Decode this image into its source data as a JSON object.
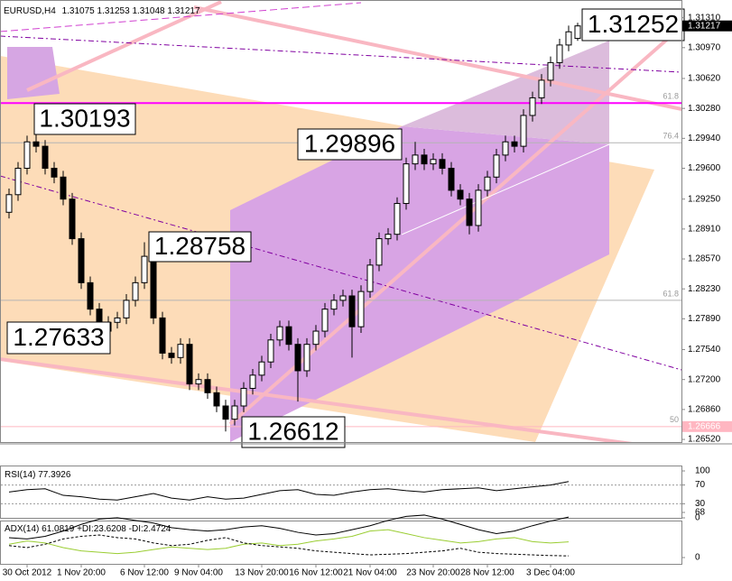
{
  "chart_data": [
    {
      "type": "candlestick",
      "title": "EURUSD,H4",
      "categories": [
        null,
        null,
        "30 Oct 2012",
        null,
        null,
        null,
        null,
        null,
        "1 Nov 20:00",
        null,
        null,
        null,
        null,
        null,
        null,
        "6 Nov 12:00",
        null,
        null,
        null,
        null,
        null,
        "9 Nov 04:00",
        null,
        null,
        null,
        null,
        null,
        null,
        "13 Nov 20:00",
        null,
        null,
        null,
        null,
        null,
        "16 Nov 12:00",
        null,
        null,
        null,
        null,
        null,
        "21 Nov 04:00",
        null,
        null,
        null,
        null,
        null,
        null,
        "23 Nov 20:00",
        null,
        null,
        null,
        null,
        null,
        "28 Nov 12:00",
        null,
        null,
        null,
        null,
        null,
        null,
        "3 Dec 04:00",
        null,
        null,
        null
      ],
      "open": [
        1.291,
        1.293,
        1.296,
        1.299,
        1.2985,
        1.296,
        1.295,
        1.2925,
        1.288,
        1.283,
        1.28,
        1.2775,
        1.2785,
        1.279,
        1.281,
        1.283,
        1.286,
        1.279,
        1.275,
        1.2745,
        1.276,
        1.2715,
        1.272,
        1.2705,
        1.269,
        1.2675,
        1.269,
        1.271,
        1.2725,
        1.274,
        1.2765,
        1.278,
        1.276,
        1.273,
        1.276,
        1.2775,
        1.28,
        1.281,
        1.2815,
        1.278,
        1.282,
        1.285,
        1.288,
        1.2885,
        1.292,
        1.2965,
        1.2975,
        1.2965,
        1.297,
        1.296,
        1.2935,
        1.2925,
        1.2895,
        1.2935,
        1.295,
        1.2975,
        1.299,
        1.2985,
        1.302,
        1.304,
        1.306,
        1.308,
        1.31,
        1.31075
      ],
      "high": [
        1.2937,
        1.2967,
        1.2997,
        1.3019,
        1.2992,
        1.2967,
        1.2957,
        1.2932,
        1.2887,
        1.2837,
        1.2807,
        1.2792,
        1.2797,
        1.2817,
        1.2837,
        1.2876,
        1.2867,
        1.2797,
        1.2757,
        1.2767,
        1.2767,
        1.2727,
        1.2727,
        1.2712,
        1.2697,
        1.2697,
        1.2717,
        1.2732,
        1.2747,
        1.2772,
        1.2787,
        1.2787,
        1.2767,
        1.2767,
        1.2782,
        1.2807,
        1.2817,
        1.2822,
        1.2822,
        1.2827,
        1.2857,
        1.2887,
        1.2892,
        1.2927,
        1.2972,
        1.299,
        1.2982,
        1.2977,
        1.2977,
        1.2967,
        1.2942,
        1.2932,
        1.2942,
        1.2957,
        1.2982,
        1.2997,
        1.2997,
        1.3027,
        1.3047,
        1.3067,
        1.3087,
        1.3107,
        1.3122,
        1.31253
      ],
      "low": [
        1.2903,
        1.2923,
        1.2953,
        1.2978,
        1.2953,
        1.2943,
        1.2918,
        1.2873,
        1.2823,
        1.2793,
        1.2763,
        1.2768,
        1.2778,
        1.2783,
        1.2803,
        1.2823,
        1.2783,
        1.2743,
        1.2738,
        1.2738,
        1.2708,
        1.2708,
        1.2698,
        1.2683,
        1.2661,
        1.2668,
        1.2683,
        1.2703,
        1.2718,
        1.2733,
        1.2758,
        1.2753,
        1.2695,
        1.2723,
        1.2753,
        1.2768,
        1.2793,
        1.2803,
        1.2745,
        1.2773,
        1.2813,
        1.2843,
        1.2873,
        1.2878,
        1.2913,
        1.2958,
        1.2958,
        1.2958,
        1.2953,
        1.2928,
        1.2918,
        1.2885,
        1.2888,
        1.2928,
        1.2943,
        1.2968,
        1.2978,
        1.2978,
        1.3013,
        1.3033,
        1.3053,
        1.3073,
        1.3093,
        1.31048
      ],
      "close": [
        1.293,
        1.296,
        1.299,
        1.2985,
        1.296,
        1.295,
        1.2925,
        1.288,
        1.283,
        1.28,
        1.2775,
        1.2785,
        1.279,
        1.281,
        1.283,
        1.286,
        1.279,
        1.275,
        1.2745,
        1.276,
        1.2715,
        1.272,
        1.2705,
        1.269,
        1.2675,
        1.269,
        1.271,
        1.2725,
        1.274,
        1.2765,
        1.278,
        1.276,
        1.273,
        1.276,
        1.2775,
        1.28,
        1.281,
        1.2815,
        1.278,
        1.282,
        1.285,
        1.288,
        1.2885,
        1.292,
        1.2965,
        1.2975,
        1.2965,
        1.297,
        1.296,
        1.2935,
        1.2925,
        1.2895,
        1.2935,
        1.295,
        1.2975,
        1.299,
        1.2985,
        1.302,
        1.304,
        1.306,
        1.308,
        1.31,
        1.3115,
        1.31217
      ],
      "ylim": [
        1.2649,
        1.3146
      ],
      "yticks": [
        {
          "value": 1.3131,
          "label": "1.31310"
        },
        {
          "value": 1.3097,
          "label": "1.30970"
        },
        {
          "value": 1.3062,
          "label": "1.30620"
        },
        {
          "value": 1.3028,
          "label": "1.30280"
        },
        {
          "value": 1.2994,
          "label": "1.29940"
        },
        {
          "value": 1.296,
          "label": "1.29600"
        },
        {
          "value": 1.2925,
          "label": "1.29250"
        },
        {
          "value": 1.2891,
          "label": "1.28910"
        },
        {
          "value": 1.2857,
          "label": "1.28570"
        },
        {
          "value": 1.2823,
          "label": "1.28230"
        },
        {
          "value": 1.2789,
          "label": "1.27890"
        },
        {
          "value": 1.2754,
          "label": "1.27540"
        },
        {
          "value": 1.272,
          "label": "1.27200"
        },
        {
          "value": 1.2686,
          "label": "1.26860"
        },
        {
          "value": 1.2652,
          "label": "1.26520"
        }
      ],
      "levels": [
        {
          "label": "61.8",
          "value": 1.3034,
          "color": "#ff00ff"
        },
        {
          "label": "76.4",
          "value": 1.2989,
          "color": "#b4b4b4"
        },
        {
          "label": "61.8",
          "value": 1.281,
          "color": "#b4b4b4"
        },
        {
          "label": "50",
          "value": 1.26666,
          "color": "#ffb6c1"
        }
      ],
      "annotations": [
        "1.31252",
        "1.30193",
        "1.29896",
        "1.28758",
        "1.27633",
        "1.26612"
      ]
    },
    {
      "type": "line",
      "title": "RSI(14)",
      "values": [
        55,
        60,
        62,
        48,
        45,
        40,
        38,
        45,
        52,
        42,
        38,
        45,
        40,
        42,
        50,
        58,
        60,
        50,
        48,
        55,
        60,
        62,
        58,
        55,
        60,
        62,
        64,
        58,
        62,
        66,
        70,
        77.3926
      ],
      "color": "#000000",
      "ylim": [
        0,
        100
      ],
      "yticks": [
        100,
        70,
        30,
        0
      ]
    },
    {
      "type": "line",
      "title": "ADX(14)",
      "series": [
        {
          "name": "ADX(14)",
          "color": "#000000",
          "values": [
            30,
            28,
            32,
            40,
            50,
            58,
            60,
            56,
            52,
            45,
            42,
            40,
            42,
            46,
            48,
            44,
            38,
            34,
            36,
            42,
            48,
            56,
            62,
            64,
            58,
            50,
            42,
            36,
            40,
            48,
            55,
            61.0819
          ]
        },
        {
          "name": "+DI:",
          "color": "#9acd32",
          "values": [
            20,
            25,
            22,
            15,
            10,
            8,
            6,
            8,
            12,
            16,
            14,
            12,
            14,
            20,
            22,
            18,
            20,
            25,
            28,
            32,
            40,
            42,
            36,
            30,
            26,
            22,
            24,
            28,
            30,
            24,
            22,
            23.6208
          ]
        },
        {
          "name": "-DI:",
          "color": "#000000",
          "values": [
            18,
            15,
            20,
            28,
            32,
            34,
            30,
            28,
            22,
            18,
            20,
            26,
            30,
            22,
            18,
            16,
            14,
            10,
            8,
            6,
            4,
            5,
            6,
            8,
            10,
            14,
            8,
            6,
            5,
            4,
            3,
            2.4724
          ]
        }
      ],
      "ylim": [
        0,
        68
      ],
      "yticks": [
        68,
        0
      ]
    }
  ]
}
